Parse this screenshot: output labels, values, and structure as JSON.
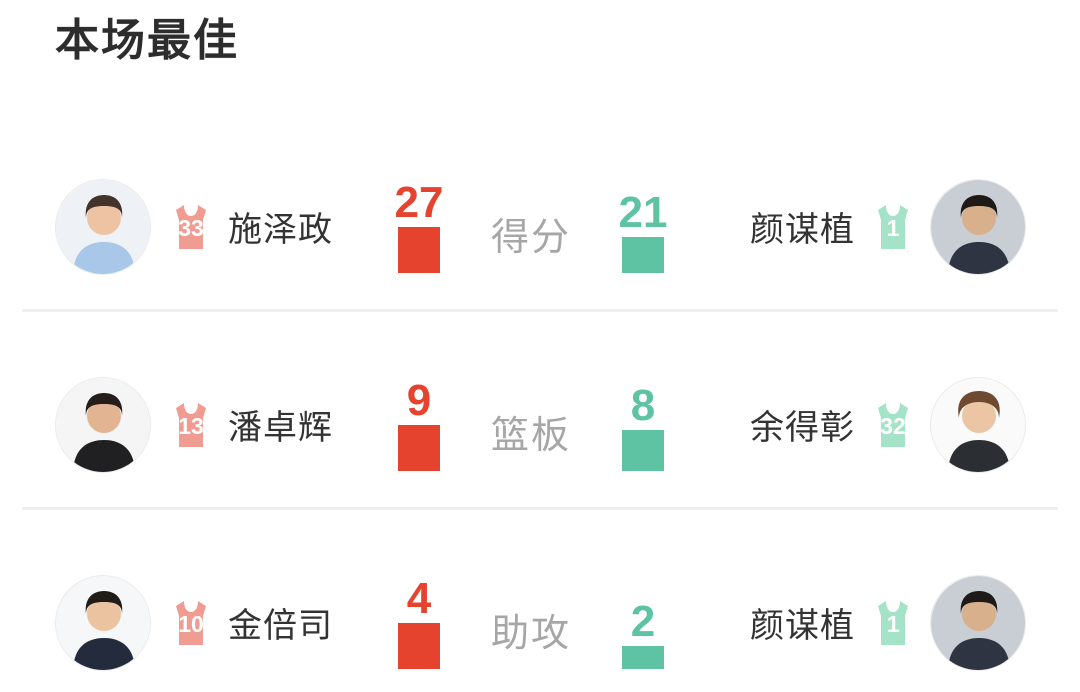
{
  "header": {
    "title": "本场最佳"
  },
  "colors": {
    "left_accent": "#e6432e",
    "right_accent": "#5ec3a2",
    "left_jersey": "#f19c92",
    "right_jersey": "#a5e3c8",
    "stat_label": "#a6a6a6",
    "name": "#333333",
    "divider": "#efefef",
    "background": "#ffffff"
  },
  "rows": [
    {
      "stat_label": "得分",
      "left": {
        "name": "施泽政",
        "jersey_number": "33",
        "value": "27",
        "avatar": {
          "bg": "#eef2f6",
          "skin": "#eec3a3",
          "hair": "#43332a",
          "shirt": "#a9c7e8"
        }
      },
      "right": {
        "name": "颜谋植",
        "jersey_number": "1",
        "value": "21",
        "avatar": {
          "bg": "#c9cdd4",
          "skin": "#d9b08c",
          "hair": "#1d1a18",
          "shirt": "#2e3442"
        }
      }
    },
    {
      "stat_label": "篮板",
      "left": {
        "name": "潘卓辉",
        "jersey_number": "13",
        "value": "9",
        "avatar": {
          "bg": "#f5f5f5",
          "skin": "#e3b491",
          "hair": "#241d19",
          "shirt": "#202023"
        }
      },
      "right": {
        "name": "余得彰",
        "jersey_number": "32",
        "value": "8",
        "avatar": {
          "bg": "#fafafa",
          "skin": "#ecc5a5",
          "hair": "#6e4b30",
          "shirt": "#2b2f33"
        }
      }
    },
    {
      "stat_label": "助攻",
      "left": {
        "name": "金倍司",
        "jersey_number": "10",
        "value": "4",
        "avatar": {
          "bg": "#f6f7f8",
          "skin": "#ecc3a0",
          "hair": "#221c18",
          "shirt": "#232b3c"
        }
      },
      "right": {
        "name": "颜谋植",
        "jersey_number": "1",
        "value": "2",
        "avatar": {
          "bg": "#c9cdd4",
          "skin": "#d9b08c",
          "hair": "#1d1a18",
          "shirt": "#2e3442"
        }
      }
    }
  ],
  "chart_data": {
    "type": "bar",
    "categories": [
      "得分",
      "篮板",
      "助攻"
    ],
    "series": [
      {
        "name": "left_players",
        "players": [
          "施泽政",
          "潘卓辉",
          "金倍司"
        ],
        "values": [
          27,
          9,
          4
        ]
      },
      {
        "name": "right_players",
        "players": [
          "颜谋植",
          "余得彰",
          "颜谋植"
        ],
        "values": [
          21,
          8,
          2
        ]
      }
    ],
    "title": "本场最佳",
    "layout": "paired horizontal comparison rows, bar height proportional to value within each pair"
  }
}
